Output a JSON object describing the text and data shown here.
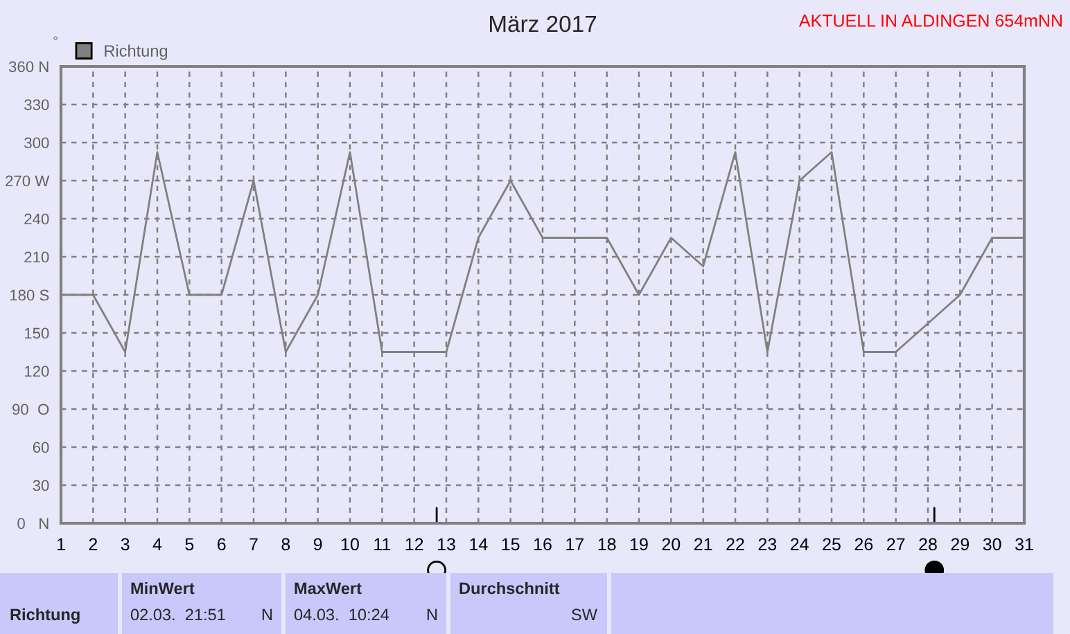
{
  "chart_data": {
    "type": "line",
    "title": "März 2017",
    "ylabel": "°",
    "x": [
      1,
      2,
      3,
      4,
      5,
      6,
      7,
      8,
      9,
      10,
      11,
      12,
      13,
      14,
      15,
      16,
      17,
      18,
      19,
      20,
      21,
      22,
      23,
      24,
      25,
      26,
      27,
      28,
      29,
      30,
      31
    ],
    "series": [
      {
        "name": "Richtung",
        "color": "#808080",
        "values": [
          180,
          180,
          135,
          292.5,
          180,
          180,
          270,
          135,
          180,
          292.5,
          135,
          135,
          135,
          225,
          270,
          225,
          225,
          225,
          180,
          225,
          202.5,
          292.5,
          135,
          270,
          292.5,
          135,
          135,
          157.5,
          180,
          225,
          225
        ]
      }
    ],
    "xlim": [
      1,
      31
    ],
    "xticks": [
      1,
      2,
      3,
      4,
      5,
      6,
      7,
      8,
      9,
      10,
      11,
      12,
      13,
      14,
      15,
      16,
      17,
      18,
      19,
      20,
      21,
      22,
      23,
      24,
      25,
      26,
      27,
      28,
      29,
      30,
      31
    ],
    "ylim": [
      0,
      360
    ],
    "yticks": [
      {
        "value": 0,
        "label": "0   N"
      },
      30,
      60,
      {
        "value": 90,
        "label": "90  O"
      },
      120,
      150,
      {
        "value": 180,
        "label": "180 S"
      },
      210,
      240,
      {
        "value": 270,
        "label": "270 W"
      },
      300,
      330,
      {
        "value": 360,
        "label": "360 N"
      }
    ],
    "grid": true,
    "legend": "top left",
    "marker": "none",
    "line_style": "solid",
    "annotations": [
      "AKTUELL IN ALDINGEN 654mNN",
      "Richtung",
      "MinWert",
      "02.03.  21:51",
      "N",
      "MaxWert",
      "04.03.  10:24",
      "N",
      "Durchschnitt",
      "SW"
    ]
  }
}
